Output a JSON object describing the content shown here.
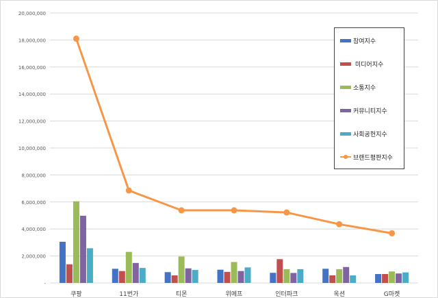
{
  "chart_data": {
    "type": "bar",
    "categories": [
      "쿠팡",
      "11번가",
      "티몬",
      "위메프",
      "인터파크",
      "옥션",
      "G마켓"
    ],
    "ylim": [
      0,
      20000000
    ],
    "yticks": [
      "20,000,000",
      "18,000,000",
      "16,000,000",
      "14,000,000",
      "12,000,000",
      "10,000,000",
      "8,000,000",
      "6,000,000",
      "4,000,000",
      "2,000,000",
      "-"
    ],
    "grid": true,
    "legend_position": "top-right",
    "series": [
      {
        "name": "참여지수",
        "kind": "bar",
        "color": "#4472c4",
        "values": [
          3050000,
          1050000,
          800000,
          980000,
          750000,
          1050000,
          660000
        ]
      },
      {
        "name": " 미디어지수",
        "kind": "bar",
        "color": "#c0504d",
        "values": [
          1380000,
          880000,
          560000,
          820000,
          1760000,
          560000,
          660000
        ]
      },
      {
        "name": "소통지수",
        "kind": "bar",
        "color": "#9bbb59",
        "values": [
          6050000,
          2300000,
          1960000,
          1550000,
          1020000,
          1020000,
          850000
        ]
      },
      {
        "name": "커뮤니티지수",
        "kind": "bar",
        "color": "#8064a2",
        "values": [
          4980000,
          1480000,
          1080000,
          880000,
          740000,
          1180000,
          700000
        ]
      },
      {
        "name": "사회공헌지수",
        "kind": "bar",
        "color": "#4bacc6",
        "values": [
          2570000,
          1110000,
          960000,
          1150000,
          1020000,
          560000,
          780000
        ]
      },
      {
        "name": "브랜드평판지수",
        "kind": "line",
        "color": "#f79646",
        "values": [
          18100000,
          6850000,
          5380000,
          5380000,
          5220000,
          4350000,
          3680000
        ]
      }
    ]
  }
}
